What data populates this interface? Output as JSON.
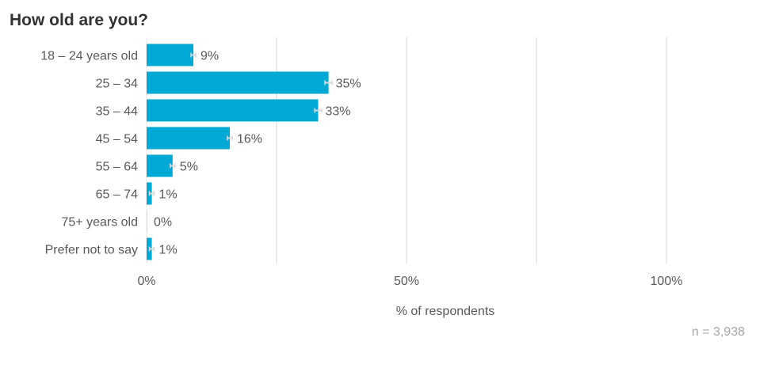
{
  "title": "How old are you?",
  "sample_note": "n =  3,938",
  "colors": {
    "bar": "#00a9d6",
    "grid": "#e4e4e4",
    "error": "#d9d9d9",
    "text": "#595959",
    "muted": "#a6a6a6"
  },
  "chart_data": {
    "type": "bar",
    "orientation": "horizontal",
    "title": "How old are you?",
    "xlabel": "% of respondents",
    "ylabel": "",
    "xlim": [
      0,
      100
    ],
    "xticks": [
      "0%",
      "50%",
      "100%"
    ],
    "grid": true,
    "categories": [
      "18 – 24 years old",
      "25 – 34",
      "35 – 44",
      "45 – 54",
      "55 – 64",
      "65 – 74",
      "75+ years old",
      "Prefer not to say"
    ],
    "values": [
      9,
      35,
      33,
      16,
      5,
      1,
      0,
      1
    ],
    "value_labels": [
      "9%",
      "35%",
      "33%",
      "16%",
      "5%",
      "1%",
      "0%",
      "1%"
    ],
    "error_bars": true,
    "n": "3,938"
  }
}
